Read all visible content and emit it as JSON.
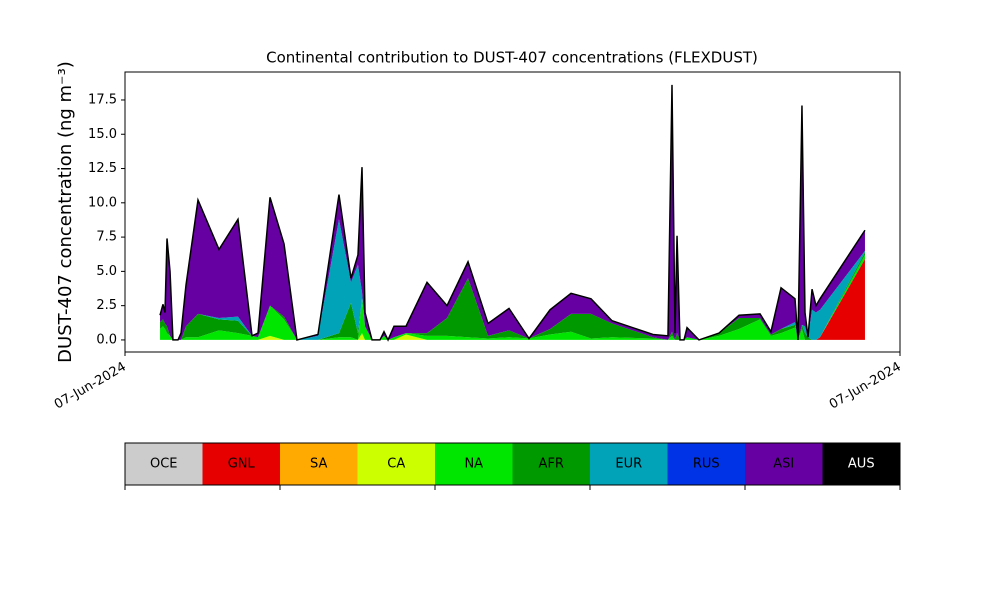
{
  "chart_data": {
    "type": "stacked_area",
    "title": "Continental contribution to DUST-407 concentrations (FLEXDUST)",
    "y_label": "DUST-407 concentration (ng m⁻³)",
    "xlim": [
      0,
      1
    ],
    "xticks": [
      {
        "value": 0,
        "label": "07-Jun-2024"
      },
      {
        "value": 1,
        "label": "07-Jun-2024"
      }
    ],
    "ylim": [
      -0.88,
      19.54
    ],
    "yticks": [
      {
        "value": 0,
        "label": "0.0"
      },
      2.5,
      {
        "value": 5,
        "label": "5.0"
      },
      7.5,
      {
        "value": 10,
        "label": "10.0"
      },
      12.5,
      {
        "value": 15,
        "label": "15.0"
      },
      17.5
    ],
    "grid": false,
    "outline_color": "#000000",
    "x": [
      0.0452,
      0.049,
      0.0516,
      0.0542,
      0.0581,
      0.0619,
      0.0684,
      0.0723,
      0.0787,
      0.0942,
      0.1213,
      0.1458,
      0.1639,
      0.1716,
      0.1871,
      0.2052,
      0.2219,
      0.249,
      0.2761,
      0.2916,
      0.3006,
      0.3058,
      0.3097,
      0.3187,
      0.329,
      0.3342,
      0.3394,
      0.3471,
      0.3626,
      0.3897,
      0.4155,
      0.4426,
      0.4684,
      0.4955,
      0.5213,
      0.5484,
      0.5755,
      0.6013,
      0.6284,
      0.6813,
      0.7006,
      0.7058,
      0.7097,
      0.7123,
      0.7161,
      0.7213,
      0.7252,
      0.7406,
      0.7665,
      0.7923,
      0.8194,
      0.8335,
      0.8465,
      0.8645,
      0.8684,
      0.8735,
      0.8774,
      0.8813,
      0.8865,
      0.8916,
      0.8968,
      0.9548
    ],
    "series": [
      {
        "name": "GNL",
        "color": "#e60000",
        "values": [
          0,
          0,
          0,
          0,
          0,
          0,
          0,
          0,
          0,
          0,
          0,
          0,
          0,
          0,
          0,
          0,
          0,
          0,
          0,
          0,
          0,
          0,
          0,
          0,
          0,
          0,
          0,
          0,
          0,
          0,
          0,
          0,
          0,
          0,
          0,
          0,
          0,
          0,
          0,
          0,
          0,
          0,
          0,
          0,
          0,
          0,
          0,
          0,
          0,
          0,
          0,
          0,
          0,
          0,
          0,
          0,
          0,
          0,
          0,
          0,
          0.2,
          5.9
        ]
      },
      {
        "name": "CA",
        "color": "#ccff00",
        "values": [
          0,
          0,
          0,
          0,
          0,
          0,
          0,
          0,
          0,
          0,
          0,
          0,
          0,
          0,
          0.3,
          0,
          0,
          0,
          0,
          0,
          0,
          0.5,
          0,
          0,
          0,
          0,
          0,
          0,
          0.4,
          0,
          0,
          0,
          0,
          0,
          0,
          0,
          0,
          0,
          0,
          0,
          0,
          0,
          0,
          0,
          0,
          0,
          0,
          0,
          0,
          0,
          0,
          0,
          0,
          0,
          0,
          0,
          0,
          0,
          0,
          0,
          0,
          0
        ]
      },
      {
        "name": "NA",
        "color": "#00e600",
        "values": [
          0.8,
          1.0,
          0.8,
          0.5,
          0.3,
          0,
          0,
          0,
          0.2,
          0.2,
          0.7,
          0.5,
          0.3,
          0.2,
          2.2,
          1.5,
          0,
          0,
          0.2,
          0.2,
          0,
          2.5,
          1.0,
          0,
          0,
          0.3,
          0,
          0.2,
          0.1,
          0.3,
          0.3,
          0.2,
          0.1,
          0.2,
          0.1,
          0.4,
          0.6,
          0.1,
          0.2,
          0.1,
          0,
          0.3,
          0,
          0,
          0,
          0,
          0.2,
          0,
          0.3,
          0.8,
          1.5,
          0.3,
          0.5,
          0.9,
          0,
          0.8,
          0,
          0,
          0,
          0,
          0,
          0.3
        ]
      },
      {
        "name": "AFR",
        "color": "#009900",
        "values": [
          0.5,
          0.5,
          0.4,
          0.5,
          0,
          0,
          0,
          0,
          0.8,
          1.7,
          0.8,
          0.9,
          0,
          0,
          0,
          0.2,
          0,
          0,
          0.3,
          2.5,
          0.5,
          0,
          0,
          0,
          0,
          0,
          0,
          0,
          0,
          0.2,
          1.3,
          4.3,
          0.2,
          0.5,
          0,
          0.4,
          1.3,
          1.8,
          1.0,
          0.1,
          0,
          0.3,
          0,
          0.5,
          0,
          0,
          0,
          0,
          0.2,
          0.8,
          0.1,
          0.1,
          0.3,
          0.2,
          0,
          0.3,
          0.5,
          0.2,
          0,
          0,
          0,
          0.2
        ]
      },
      {
        "name": "EUR",
        "color": "#00a3b8",
        "values": [
          0,
          0,
          0,
          0,
          0,
          0,
          0,
          0,
          0,
          0,
          0.1,
          0.3,
          0,
          0,
          0,
          0,
          0,
          0.3,
          8.3,
          1.5,
          5.0,
          0.5,
          0,
          0,
          0,
          0,
          0,
          0,
          0,
          0,
          0,
          0,
          0,
          0,
          0,
          0,
          0,
          0,
          0,
          0,
          0,
          0,
          0,
          0,
          0,
          0,
          0,
          0,
          0,
          0,
          0,
          0,
          0,
          0.2,
          0,
          0,
          0.5,
          0,
          2.2,
          2.0,
          2.0,
          0.1
        ]
      },
      {
        "name": "ASI",
        "color": "#6600a3",
        "values": [
          0.5,
          1.1,
          0.8,
          6.4,
          4.7,
          0,
          0,
          0.5,
          3.0,
          8.3,
          5.0,
          7.1,
          0,
          0.3,
          7.9,
          5.3,
          0,
          0.1,
          1.8,
          0.3,
          0.7,
          9.1,
          1.0,
          0,
          0,
          0.3,
          0,
          0.8,
          0.5,
          3.7,
          0.9,
          1.2,
          0.9,
          1.6,
          0,
          1.4,
          1.5,
          1.1,
          0.2,
          0.2,
          0.3,
          18.0,
          0.5,
          7.1,
          0,
          0,
          0.7,
          0,
          0,
          0.2,
          0.3,
          0.2,
          3.0,
          1.7,
          0,
          16.0,
          1.0,
          0,
          1.5,
          0.5,
          0.8,
          1.5
        ]
      }
    ],
    "colorbar": {
      "labels": [
        "OCE",
        "GNL",
        "SA",
        "CA",
        "NA",
        "AFR",
        "EUR",
        "RUS",
        "ASI",
        "AUS"
      ],
      "colors": [
        "#cccccc",
        "#e60000",
        "#ffaa00",
        "#ccff00",
        "#00e600",
        "#009900",
        "#00a3b8",
        "#0033e6",
        "#6600a3",
        "#000000"
      ],
      "label_colors": [
        "#000000",
        "#000000",
        "#000000",
        "#000000",
        "#000000",
        "#000000",
        "#000000",
        "#000000",
        "#000000",
        "#ffffff"
      ]
    }
  }
}
